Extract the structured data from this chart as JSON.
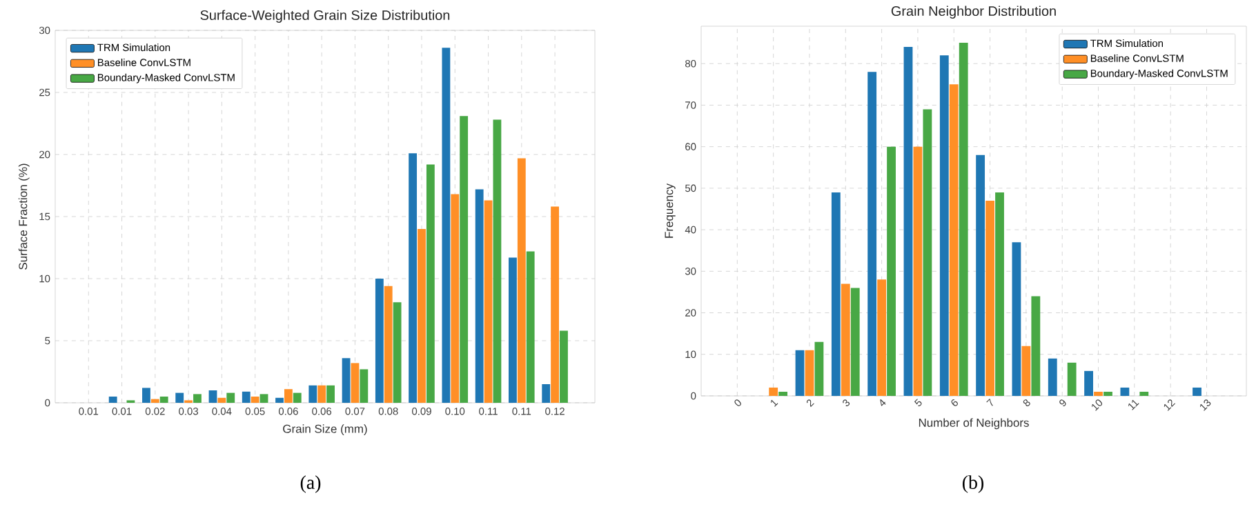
{
  "chart_data": [
    {
      "type": "bar",
      "title": "Surface-Weighted Grain Size Distribution",
      "xlabel": "Grain Size (mm)",
      "ylabel": "Surface Fraction (%)",
      "categories": [
        "0.01",
        "0.01",
        "0.02",
        "0.03",
        "0.04",
        "0.05",
        "0.06",
        "0.06",
        "0.07",
        "0.08",
        "0.09",
        "0.10",
        "0.11",
        "0.11",
        "0.12"
      ],
      "series": [
        {
          "name": "TRM Simulation",
          "color": "#1f77b4",
          "values": [
            0,
            0.5,
            1.2,
            0.8,
            1.0,
            0.9,
            0.4,
            1.4,
            3.6,
            10.0,
            20.1,
            28.6,
            17.2,
            11.7,
            1.5
          ]
        },
        {
          "name": "Baseline ConvLSTM",
          "color": "#ff8f26",
          "values": [
            0,
            0,
            0.3,
            0.2,
            0.4,
            0.5,
            1.1,
            1.4,
            3.2,
            9.4,
            14.0,
            16.8,
            16.3,
            19.7,
            15.8
          ]
        },
        {
          "name": "Boundary-Masked ConvLSTM",
          "color": "#48a845",
          "values": [
            0,
            0.2,
            0.5,
            0.7,
            0.8,
            0.7,
            0.8,
            1.4,
            2.7,
            8.1,
            19.2,
            23.1,
            22.8,
            12.2,
            5.8
          ]
        }
      ],
      "ylim": [
        0,
        30
      ],
      "yticks": [
        0,
        5,
        10,
        15,
        20,
        25,
        30
      ],
      "grid": true,
      "legend": "top left",
      "annotations": [
        "(a)"
      ]
    },
    {
      "type": "bar",
      "title": "Grain Neighbor Distribution",
      "xlabel": "Number of Neighbors",
      "ylabel": "Frequency",
      "categories": [
        "0",
        "1",
        "2",
        "3",
        "4",
        "5",
        "6",
        "7",
        "8",
        "9",
        "10",
        "11",
        "12",
        "13"
      ],
      "series": [
        {
          "name": "TRM Simulation",
          "color": "#1f77b4",
          "values": [
            0,
            0,
            11,
            49,
            78,
            84,
            82,
            58,
            37,
            9,
            6,
            2,
            0,
            2
          ]
        },
        {
          "name": "Baseline ConvLSTM",
          "color": "#ff8f26",
          "values": [
            0,
            2,
            11,
            27,
            28,
            60,
            75,
            47,
            12,
            0,
            1,
            0,
            0,
            0
          ]
        },
        {
          "name": "Boundary-Masked ConvLSTM",
          "color": "#48a845",
          "values": [
            0,
            1,
            13,
            26,
            60,
            69,
            85,
            49,
            24,
            8,
            1,
            1,
            0,
            0
          ]
        }
      ],
      "ylim": [
        0,
        89
      ],
      "yticks": [
        0,
        10,
        20,
        30,
        40,
        50,
        60,
        70,
        80
      ],
      "grid": true,
      "legend": "top right",
      "annotations": [
        "(b)"
      ]
    }
  ]
}
